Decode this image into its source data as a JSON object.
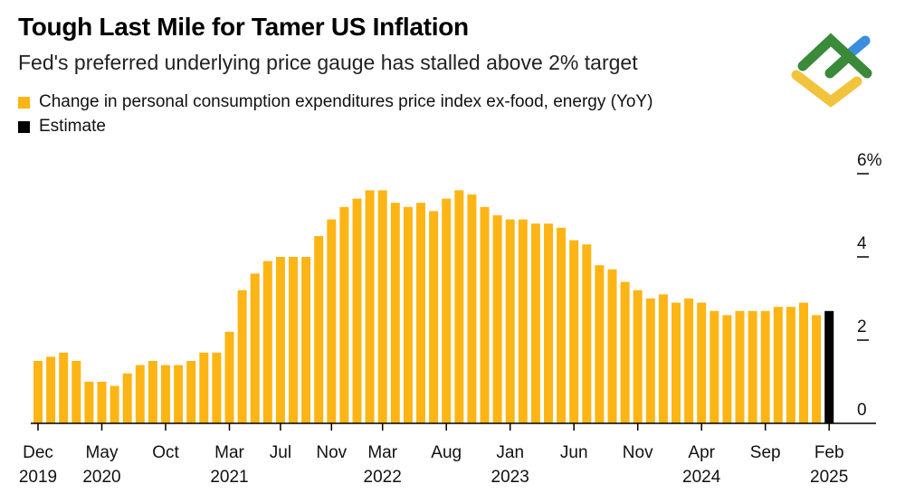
{
  "colors": {
    "bar": "#FDB515",
    "estimate": "#000000",
    "logo_green": "#3A8A3A",
    "logo_blue": "#3A8EDB",
    "logo_yellow": "#F2C33C"
  },
  "chart_data": {
    "type": "bar",
    "title": "Tough Last Mile for Tamer US Inflation",
    "subtitle": "Fed's preferred underlying price gauge has stalled above 2% target",
    "legend": [
      {
        "label": "Change in personal consumption expenditures price index ex-food, energy (YoY)",
        "color": "#FDB515"
      },
      {
        "label": "Estimate",
        "color": "#000000"
      }
    ],
    "start": "Dec 2019",
    "end": "Feb 2025",
    "values": [
      1.5,
      1.6,
      1.7,
      1.5,
      1.0,
      1.0,
      0.9,
      1.2,
      1.4,
      1.5,
      1.4,
      1.4,
      1.5,
      1.7,
      1.7,
      2.2,
      3.2,
      3.6,
      3.9,
      4.0,
      4.0,
      4.0,
      4.5,
      4.9,
      5.2,
      5.4,
      5.6,
      5.6,
      5.3,
      5.2,
      5.3,
      5.1,
      5.4,
      5.6,
      5.5,
      5.2,
      5.0,
      4.9,
      4.9,
      4.8,
      4.8,
      4.7,
      4.4,
      4.3,
      3.8,
      3.7,
      3.4,
      3.2,
      3.0,
      3.1,
      2.9,
      3.0,
      2.9,
      2.7,
      2.6,
      2.7,
      2.7,
      2.7,
      2.8,
      2.8,
      2.9,
      2.6,
      2.7
    ],
    "estimate_index": [
      62
    ],
    "ylim": [
      0,
      6
    ],
    "yticks": [
      {
        "value": 0,
        "label": "0"
      },
      {
        "value": 2,
        "label": "2"
      },
      {
        "value": 4,
        "label": "4"
      },
      {
        "value": 6,
        "label": "6%"
      }
    ],
    "xticks": [
      {
        "index": 0,
        "label": "Dec",
        "year": "2019"
      },
      {
        "index": 5,
        "label": "May",
        "year": "2020"
      },
      {
        "index": 10,
        "label": "Oct",
        "year": ""
      },
      {
        "index": 15,
        "label": "Mar",
        "year": "2021"
      },
      {
        "index": 19,
        "label": "Jul",
        "year": ""
      },
      {
        "index": 23,
        "label": "Nov",
        "year": ""
      },
      {
        "index": 27,
        "label": "Mar",
        "year": "2022"
      },
      {
        "index": 32,
        "label": "Aug",
        "year": ""
      },
      {
        "index": 37,
        "label": "Jan",
        "year": "2023"
      },
      {
        "index": 42,
        "label": "Jun",
        "year": ""
      },
      {
        "index": 47,
        "label": "Nov",
        "year": ""
      },
      {
        "index": 52,
        "label": "Apr",
        "year": "2024"
      },
      {
        "index": 57,
        "label": "Sep",
        "year": ""
      },
      {
        "index": 62,
        "label": "Feb",
        "year": "2025"
      }
    ],
    "xlabel": "",
    "ylabel": ""
  }
}
